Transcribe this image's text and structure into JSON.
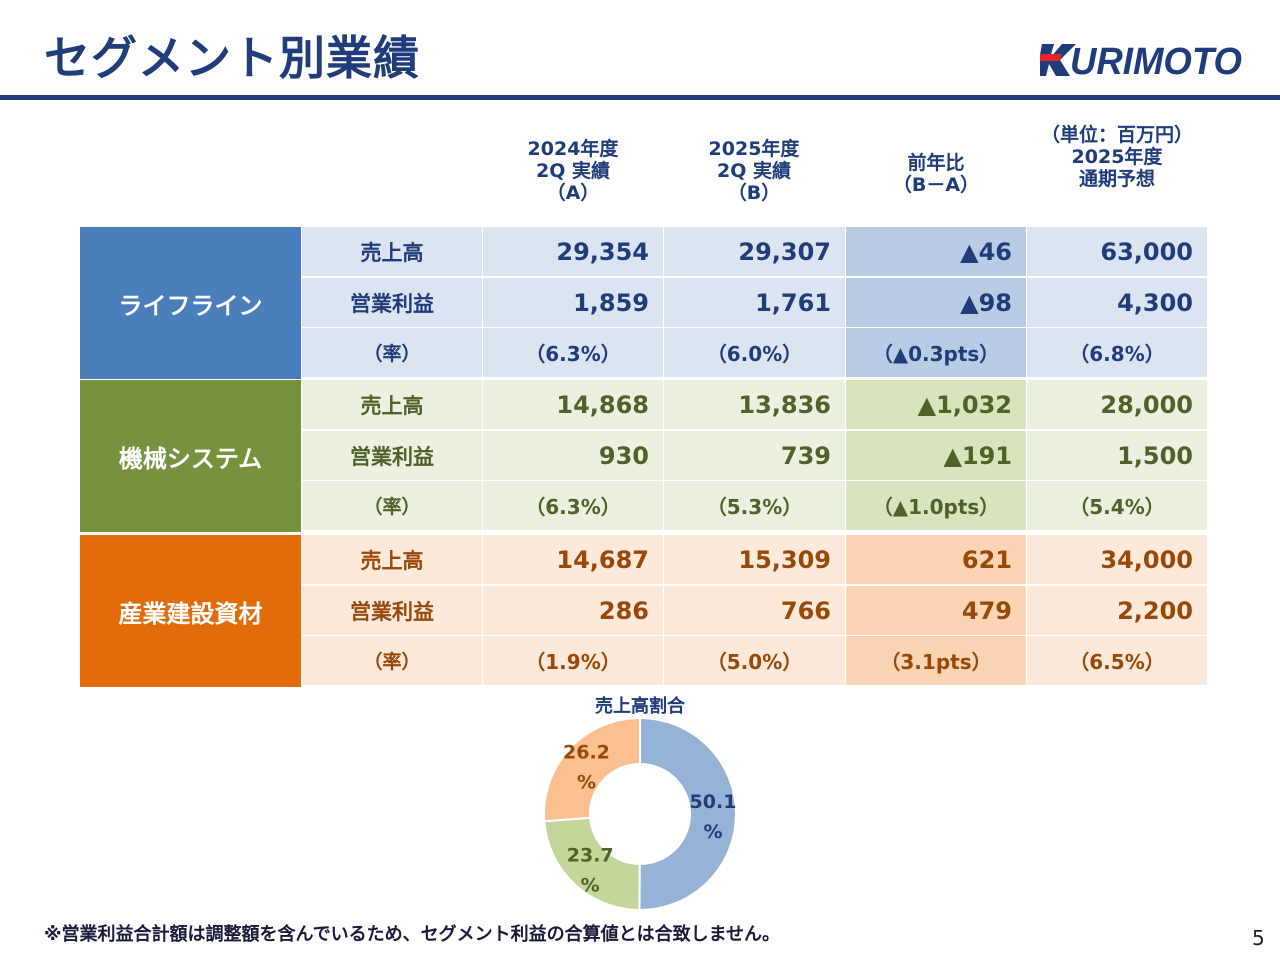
{
  "title": "セグメント別業績",
  "logo_text": "KURIMOTO",
  "header": {
    "unit": "（単位：百万円）",
    "col1": [
      "2024年度",
      "2Q 実績",
      "（A）"
    ],
    "col2": [
      "2025年度",
      "2Q 実績",
      "（B）"
    ],
    "col3": [
      "前年比",
      "（B－A）"
    ],
    "col4": [
      "2025年度",
      "通期予想"
    ]
  },
  "segments": [
    {
      "name": "ライフライン",
      "rows": [
        {
          "label": "売上高",
          "a": "29,354",
          "b": "29,307",
          "diff": "▲46",
          "forecast": "63,000"
        },
        {
          "label": "営業利益",
          "a": "1,859",
          "b": "1,761",
          "diff": "▲98",
          "forecast": "4,300"
        },
        {
          "label": "（率）",
          "a": "（6.3%）",
          "b": "（6.0%）",
          "diff": "（▲0.3pts）",
          "forecast": "（6.8%）"
        }
      ]
    },
    {
      "name": "機械システム",
      "rows": [
        {
          "label": "売上高",
          "a": "14,868",
          "b": "13,836",
          "diff": "▲1,032",
          "forecast": "28,000"
        },
        {
          "label": "営業利益",
          "a": "930",
          "b": "739",
          "diff": "▲191",
          "forecast": "1,500"
        },
        {
          "label": "（率）",
          "a": "（6.3%）",
          "b": "（5.3%）",
          "diff": "（▲1.0pts）",
          "forecast": "（5.4%）"
        }
      ]
    },
    {
      "name": "産業建設資材",
      "rows": [
        {
          "label": "売上高",
          "a": "14,687",
          "b": "15,309",
          "diff": "621",
          "forecast": "34,000"
        },
        {
          "label": "営業利益",
          "a": "286",
          "b": "766",
          "diff": "479",
          "forecast": "2,200"
        },
        {
          "label": "（率）",
          "a": "（1.9%）",
          "b": "（5.0%）",
          "diff": "（3.1pts）",
          "forecast": "（6.5%）"
        }
      ]
    }
  ],
  "colors": {
    "title": "#1f3d7a",
    "lifeline": {
      "seg": "#4a7ebb",
      "cell": "#dbe5f2",
      "diff": "#b8cce4",
      "text": "#1f3d7a"
    },
    "machinery": {
      "seg": "#76923c",
      "cell": "#ebf1de",
      "diff": "#d7e4bc",
      "text": "#4f6228"
    },
    "materials": {
      "seg": "#e36c0a",
      "cell": "#fde9d9",
      "diff": "#fbd4b4",
      "text": "#984807"
    }
  },
  "chart_data": {
    "type": "pie",
    "title": "売上高割合",
    "labels": [
      "50.1%",
      "23.7%",
      "26.2%"
    ],
    "values": [
      50.1,
      23.7,
      26.2
    ],
    "colors": [
      "#95b3d7",
      "#c3d69b",
      "#fac090"
    ],
    "label_colors": [
      "#1f3d7a",
      "#4f6228",
      "#984807"
    ],
    "label_lines": [
      [
        "50.1",
        "%"
      ],
      [
        "23.7",
        "%"
      ],
      [
        "26.2",
        "%"
      ]
    ]
  },
  "footnote": "※営業利益合計額は調整額を含んでいるため、セグメント利益の合算値とは合致しません。",
  "page_number": "5"
}
